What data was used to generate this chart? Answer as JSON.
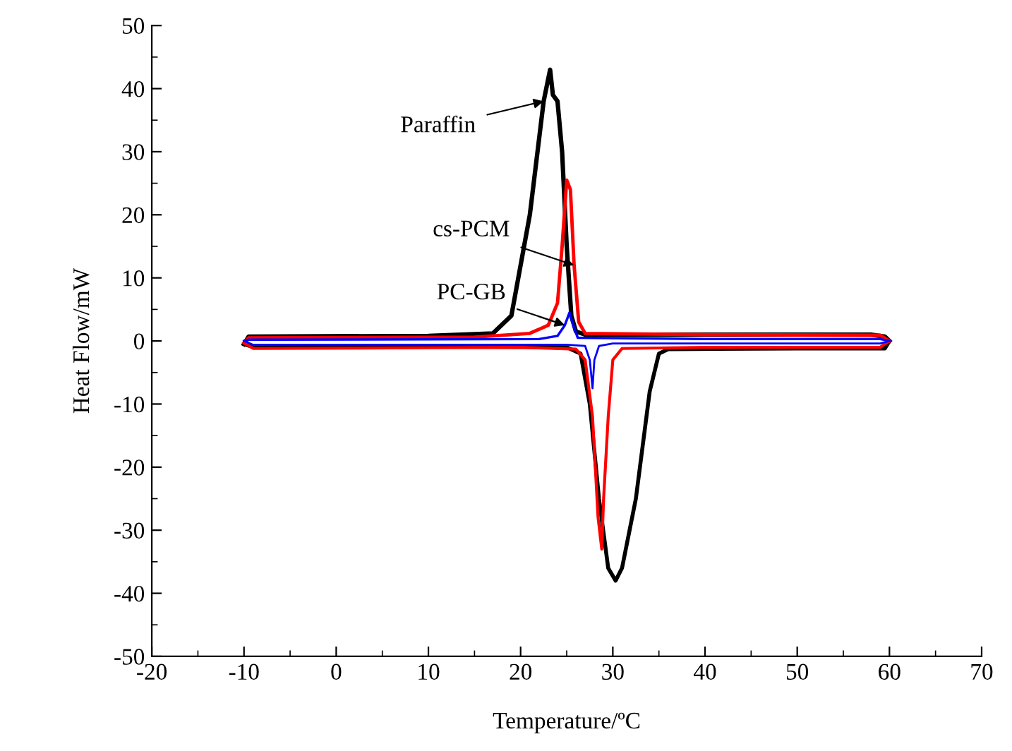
{
  "chart_data": {
    "type": "line",
    "xlabel": "Temperature/ºC",
    "ylabel": "Heat Flow/mW",
    "xlim": [
      -20,
      70
    ],
    "xticks": [
      -20,
      -10,
      0,
      10,
      20,
      30,
      40,
      50,
      60,
      70
    ],
    "ylim": [
      -50,
      50
    ],
    "yticks": [
      -50,
      -40,
      -30,
      -20,
      -10,
      0,
      10,
      20,
      30,
      40,
      50
    ],
    "series": [
      {
        "color": "#000000",
        "x": [
          -10,
          -9.5,
          10,
          17,
          19,
          21,
          22.5,
          23.2,
          23.5,
          24,
          24.5,
          25,
          25.5,
          26,
          27,
          40,
          58,
          59.5,
          60
        ],
        "values": [
          -0.5,
          0.7,
          0.8,
          1.2,
          4,
          20,
          38,
          43,
          39,
          38,
          30,
          15,
          4,
          1.5,
          1,
          1,
          1,
          0.7,
          0
        ]
      },
      {
        "color": "#000000",
        "x": [
          -10,
          -9,
          10,
          25,
          26.5,
          27.5,
          28.5,
          29.5,
          30.3,
          31,
          32.5,
          34,
          35,
          36,
          50,
          59.5,
          60
        ],
        "values": [
          -0.5,
          -1,
          -0.9,
          -1,
          -2,
          -10,
          -25,
          -36,
          -38,
          -36,
          -25,
          -8,
          -2,
          -1.3,
          -1.2,
          -1.2,
          0
        ]
      },
      {
        "color": "#ff0000",
        "x": [
          -10,
          -9.5,
          15,
          21,
          23,
          24,
          24.5,
          25,
          25.4,
          25.8,
          26.3,
          27,
          40,
          59,
          60
        ],
        "values": [
          -0.3,
          0.5,
          0.6,
          1.2,
          2.5,
          6,
          15,
          25.5,
          24,
          12,
          3,
          1.2,
          1,
          0.9,
          0
        ]
      },
      {
        "color": "#ff0000",
        "x": [
          -10,
          -9,
          20,
          26,
          27,
          27.8,
          28.4,
          28.8,
          29,
          29.5,
          30,
          31,
          40,
          59,
          60
        ],
        "values": [
          -0.3,
          -1.2,
          -1,
          -1.3,
          -3,
          -12,
          -28,
          -33,
          -25,
          -12,
          -3,
          -1.2,
          -1,
          -1,
          0
        ]
      },
      {
        "color": "#0000ff",
        "x": [
          -10,
          -9.5,
          22,
          24,
          24.8,
          25.3,
          25.7,
          26.2,
          40,
          59,
          60
        ],
        "values": [
          0,
          0.2,
          0.3,
          0.8,
          2.5,
          4.5,
          2.5,
          0.5,
          0.3,
          0.3,
          0
        ]
      },
      {
        "color": "#0000ff",
        "x": [
          -10,
          -9,
          25,
          27,
          27.5,
          27.8,
          28,
          28.5,
          30,
          59,
          60
        ],
        "values": [
          0,
          -0.6,
          -0.6,
          -0.8,
          -3,
          -7.5,
          -3,
          -0.8,
          -0.4,
          -0.4,
          0
        ]
      }
    ],
    "annotations": [
      {
        "text": "Paraffin",
        "x": 22.5,
        "y": 38
      },
      {
        "text": "cs-PCM",
        "x": 25.8,
        "y": 12
      },
      {
        "text": "PC-GB",
        "x": 24.8,
        "y": 2.5
      }
    ]
  }
}
